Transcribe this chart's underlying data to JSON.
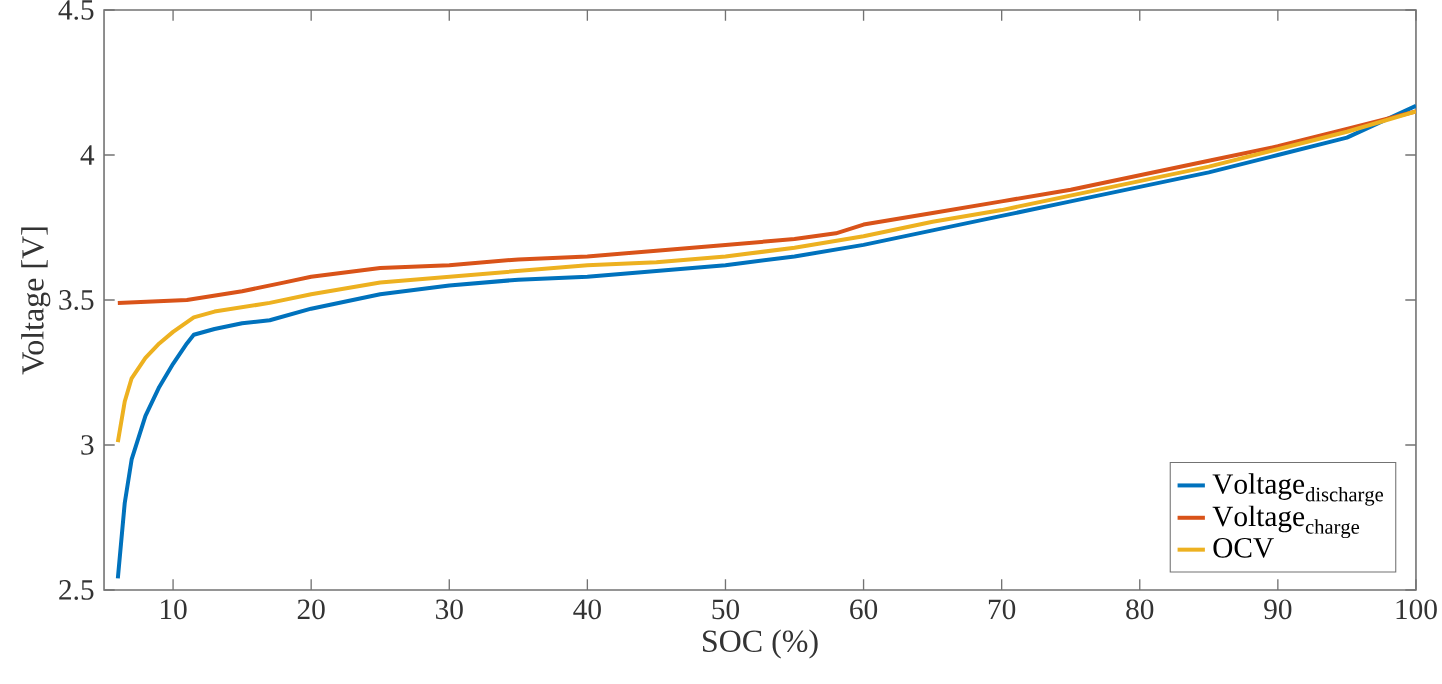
{
  "chart_data": {
    "type": "line",
    "xlabel": "SOC (%)",
    "ylabel": "Voltage [V]",
    "xlim": [
      5,
      100
    ],
    "ylim": [
      2.5,
      4.5
    ],
    "xticks": [
      10,
      20,
      30,
      40,
      50,
      60,
      70,
      80,
      90,
      100
    ],
    "yticks": [
      2.5,
      3,
      3.5,
      4,
      4.5
    ],
    "legend": "bottom right",
    "grid": false,
    "marker": "none",
    "line_style": "solid",
    "series": [
      {
        "name": "\\mathrm{Voltage}_{\\mathrm{discharge}}",
        "color": "#0072bd",
        "x": [
          6,
          6.5,
          7,
          8,
          9,
          10,
          11,
          11.5,
          13,
          15,
          17,
          20,
          25,
          30,
          35,
          40,
          45,
          50,
          55,
          60,
          65,
          70,
          75,
          80,
          85,
          90,
          95,
          100
        ],
        "values": [
          2.54,
          2.8,
          2.95,
          3.1,
          3.2,
          3.28,
          3.35,
          3.38,
          3.4,
          3.42,
          3.43,
          3.47,
          3.52,
          3.55,
          3.57,
          3.58,
          3.6,
          3.62,
          3.65,
          3.69,
          3.74,
          3.79,
          3.84,
          3.89,
          3.94,
          4.0,
          4.06,
          4.17
        ]
      },
      {
        "name": "\\mathrm{Voltage}_{\\mathrm{charge}}",
        "color": "#d95319",
        "x": [
          6,
          11,
          15,
          18,
          20,
          25,
          30,
          35,
          40,
          45,
          50,
          55,
          58,
          60,
          65,
          70,
          75,
          80,
          85,
          90,
          95,
          100
        ],
        "values": [
          3.49,
          3.5,
          3.53,
          3.56,
          3.58,
          3.61,
          3.62,
          3.64,
          3.65,
          3.67,
          3.69,
          3.71,
          3.73,
          3.76,
          3.8,
          3.84,
          3.88,
          3.93,
          3.98,
          4.03,
          4.09,
          4.15
        ]
      },
      {
        "name": "\\mathrm{OCV}",
        "color": "#edb120",
        "x": [
          6,
          6.5,
          7,
          8,
          9,
          10,
          11.5,
          13,
          17,
          20,
          25,
          30,
          35,
          40,
          45,
          50,
          55,
          60,
          65,
          70,
          75,
          80,
          85,
          90,
          95,
          100
        ],
        "values": [
          3.01,
          3.15,
          3.23,
          3.3,
          3.35,
          3.39,
          3.44,
          3.46,
          3.49,
          3.52,
          3.56,
          3.58,
          3.6,
          3.62,
          3.63,
          3.65,
          3.68,
          3.72,
          3.77,
          3.81,
          3.86,
          3.91,
          3.96,
          4.02,
          4.08,
          4.15
        ]
      }
    ]
  }
}
